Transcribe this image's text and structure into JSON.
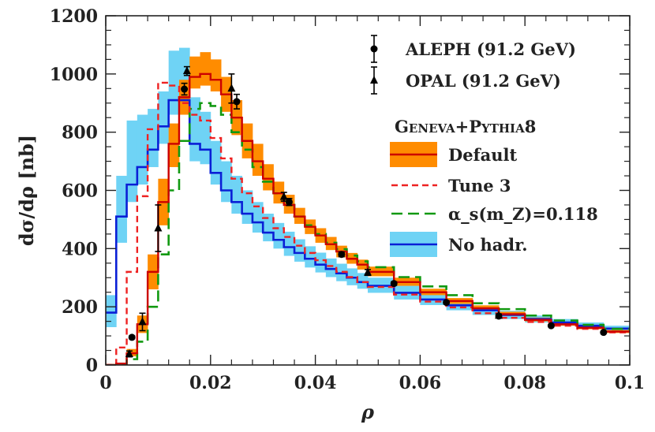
{
  "chart_data": {
    "type": "line",
    "xlabel": "ρ",
    "ylabel": "dσ/dρ [nb]",
    "xlim": [
      0,
      0.1
    ],
    "ylim": [
      0,
      1200
    ],
    "x_ticks": [
      0,
      0.02,
      0.04,
      0.06,
      0.08,
      0.1
    ],
    "x_tick_labels": [
      "0",
      "0.02",
      "0.04",
      "0.06",
      "0.08",
      "0.1"
    ],
    "y_ticks": [
      0,
      200,
      400,
      600,
      800,
      1000,
      1200
    ],
    "y_tick_labels": [
      "0",
      "200",
      "400",
      "600",
      "800",
      "1000",
      "1200"
    ],
    "legend_position": "top-right",
    "legend_group_title": "Geneva+Pythia8",
    "colors": {
      "default_line": "#cc0000",
      "default_band": "#ff8c00",
      "tune3": "#ee2222",
      "alphas": "#119911",
      "nohadr_line": "#0a1fd6",
      "nohadr_band": "#6fd3f5",
      "data": "#000000"
    },
    "bin_edges": [
      0,
      0.002,
      0.004,
      0.006,
      0.008,
      0.01,
      0.012,
      0.014,
      0.016,
      0.018,
      0.02,
      0.022,
      0.024,
      0.026,
      0.028,
      0.03,
      0.032,
      0.034,
      0.036,
      0.038,
      0.04,
      0.042,
      0.044,
      0.046,
      0.048,
      0.05,
      0.055,
      0.06,
      0.065,
      0.07,
      0.075,
      0.08,
      0.085,
      0.09,
      0.095,
      0.1
    ],
    "series": [
      {
        "name": "Default",
        "style": "step-band",
        "values": [
          0,
          5,
          40,
          140,
          320,
          560,
          760,
          920,
          990,
          1000,
          980,
          930,
          850,
          770,
          700,
          640,
          590,
          550,
          510,
          475,
          445,
          415,
          390,
          365,
          345,
          320,
          285,
          250,
          220,
          195,
          175,
          155,
          140,
          128,
          115
        ],
        "band_lo": [
          0,
          3,
          30,
          110,
          260,
          480,
          680,
          860,
          950,
          960,
          940,
          870,
          790,
          710,
          650,
          600,
          555,
          520,
          485,
          450,
          420,
          395,
          370,
          348,
          328,
          305,
          272,
          240,
          210,
          187,
          168,
          150,
          135,
          123,
          110
        ],
        "band_hi": [
          0,
          8,
          55,
          170,
          380,
          640,
          830,
          980,
          1060,
          1075,
          1050,
          990,
          910,
          830,
          760,
          690,
          630,
          585,
          540,
          500,
          470,
          440,
          410,
          385,
          362,
          338,
          300,
          262,
          230,
          205,
          183,
          163,
          147,
          134,
          120
        ]
      },
      {
        "name": "Tune 3",
        "style": "step-dashed",
        "values": [
          0,
          60,
          320,
          580,
          810,
          970,
          960,
          900,
          860,
          840,
          780,
          710,
          640,
          590,
          545,
          505,
          470,
          440,
          410,
          385,
          360,
          340,
          320,
          302,
          285,
          268,
          242,
          218,
          198,
          178,
          162,
          148,
          135,
          124,
          112
        ]
      },
      {
        "name": "α_s(m_Z)=0.118",
        "style": "step-longdash",
        "values": [
          0,
          2,
          20,
          80,
          200,
          380,
          600,
          770,
          880,
          900,
          890,
          860,
          800,
          740,
          680,
          630,
          590,
          550,
          510,
          480,
          450,
          420,
          398,
          376,
          356,
          336,
          302,
          270,
          240,
          212,
          192,
          170,
          153,
          138,
          124
        ]
      },
      {
        "name": "No hadr.",
        "style": "step-band",
        "values": [
          180,
          510,
          620,
          680,
          740,
          820,
          910,
          910,
          760,
          740,
          660,
          600,
          560,
          520,
          490,
          455,
          430,
          405,
          385,
          365,
          345,
          330,
          315,
          300,
          285,
          272,
          248,
          225,
          205,
          188,
          172,
          158,
          146,
          135,
          125
        ],
        "band_lo": [
          130,
          420,
          560,
          620,
          680,
          760,
          860,
          860,
          700,
          690,
          620,
          560,
          520,
          485,
          455,
          425,
          400,
          375,
          355,
          335,
          318,
          302,
          288,
          274,
          262,
          248,
          225,
          206,
          188,
          172,
          158,
          146,
          135,
          124,
          114
        ],
        "band_hi": [
          240,
          650,
          840,
          860,
          880,
          940,
          1080,
          1090,
          920,
          870,
          770,
          700,
          650,
          600,
          560,
          520,
          488,
          458,
          432,
          408,
          386,
          366,
          348,
          332,
          316,
          300,
          272,
          246,
          224,
          204,
          186,
          170,
          158,
          146,
          135
        ]
      },
      {
        "name": "ALEPH (91.2 GeV)",
        "style": "points-circle",
        "x": [
          0.005,
          0.015,
          0.025,
          0.035,
          0.045,
          0.055,
          0.065,
          0.075,
          0.085,
          0.095
        ],
        "values": [
          95,
          948,
          905,
          560,
          380,
          280,
          215,
          168,
          135,
          112
        ],
        "errors": [
          5,
          20,
          25,
          12,
          8,
          6,
          5,
          4,
          4,
          3
        ]
      },
      {
        "name": "OPAL (91.2 GeV)",
        "style": "points-triangle",
        "x": [
          0.0045,
          0.007,
          0.01,
          0.0155,
          0.024,
          0.034,
          0.05,
          0.075
        ],
        "values": [
          38,
          148,
          470,
          1010,
          950,
          578,
          318,
          170
        ],
        "errors": [
          10,
          30,
          80,
          15,
          50,
          15,
          10,
          5
        ]
      }
    ]
  }
}
